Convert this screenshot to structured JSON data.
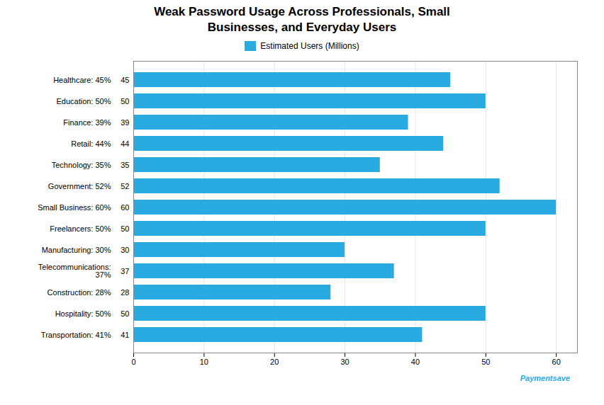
{
  "chart_data": {
    "type": "bar",
    "orientation": "horizontal",
    "title": "Weak Password Usage Across Professionals, Small\nBusinesses, and Everyday Users",
    "categories": [
      "Healthcare: 45%",
      "Education: 50%",
      "Finance: 39%",
      "Retail: 44%",
      "Technology: 35%",
      "Government: 52%",
      "Small Business: 60%",
      "Freelancers: 50%",
      "Manufacturing: 30%",
      "Telecommunications:\n37%",
      "Construction: 28%",
      "Hospitality: 50%",
      "Transportation: 41%"
    ],
    "series": [
      {
        "name": "Estimated Users (Millions)",
        "color": "#29ABE2",
        "values": [
          45,
          50,
          39,
          44,
          35,
          52,
          60,
          50,
          30,
          37,
          28,
          50,
          41
        ]
      }
    ],
    "xlim": [
      0,
      63
    ],
    "xticks": [
      0,
      10,
      20,
      30,
      40,
      50,
      60
    ],
    "grid": true,
    "legend": "top",
    "data_labels": true,
    "annotations": [
      "Paymentsave"
    ]
  }
}
